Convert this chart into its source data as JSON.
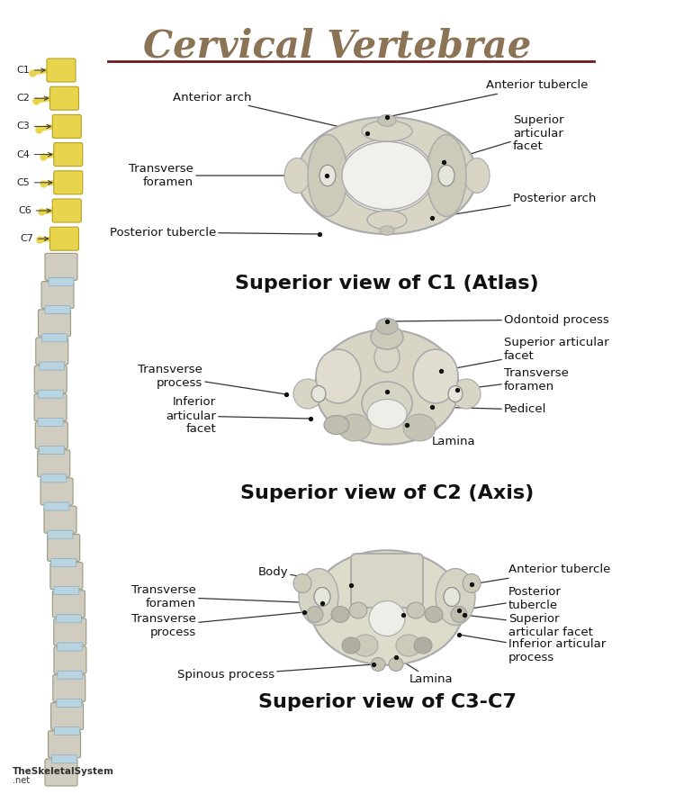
{
  "title": "Cervical Vertebrae",
  "title_color": "#8B7355",
  "title_underline_color": "#6B1A1A",
  "bg_color": "#FFFFFF",
  "spine_labels": [
    "C1",
    "C2",
    "C3",
    "C4",
    "C5",
    "C6",
    "C7"
  ],
  "watermark_bold": "TheSkeletalSystem",
  "watermark_light": ".net",
  "section1_title": "Superior view of C1 (Atlas)",
  "section2_title": "Superior view of C2 (Axis)",
  "section3_title": "Superior view of C3-C7",
  "bone_color": "#D8D5C5",
  "bone_edge": "#AAAAAA",
  "canal_color": "#EEEEE8",
  "dark_bone": "#C5C3B3",
  "line_color": "#333333",
  "dot_color": "#111111",
  "yellow_vert": "#E8D44D",
  "yellow_edge": "#B8A020",
  "gray_vert": "#D0CCC0",
  "gray_edge": "#999980",
  "disc_color": "#B8D4E0",
  "disc_edge": "#8AAABB"
}
